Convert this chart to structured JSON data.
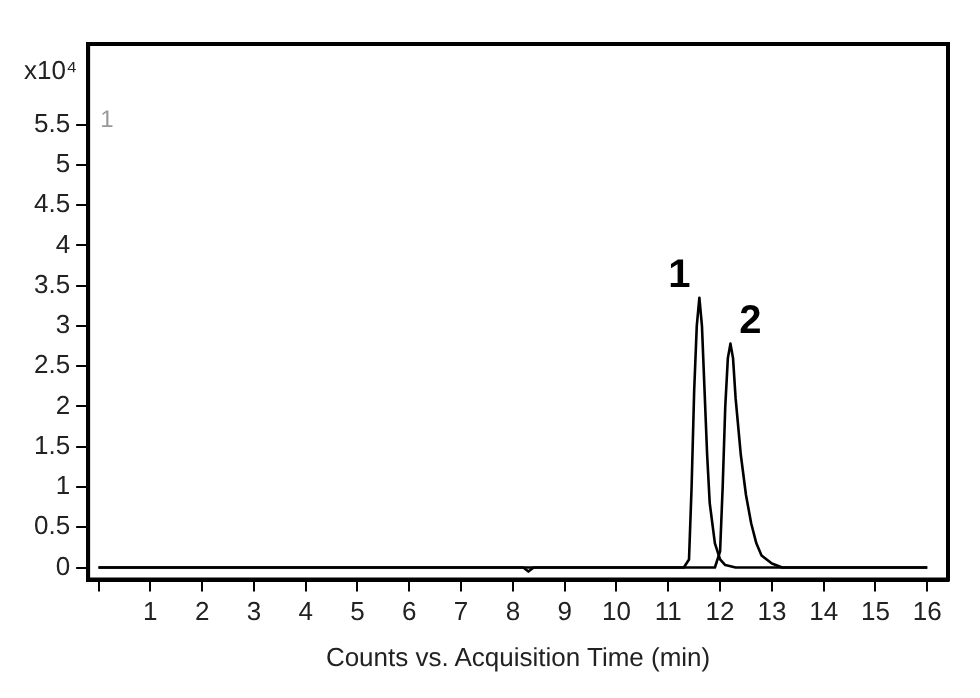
{
  "chart_data": {
    "type": "line",
    "xlabel": "Counts vs. Acquisition Time (min)",
    "ylabel": "x10⁴",
    "annotations": [
      {
        "text": "1",
        "x": 11.6,
        "y": 3.35
      },
      {
        "text": "2",
        "x": 12.2,
        "y": 2.78
      },
      "1"
    ],
    "series": [
      {
        "color": "#000000",
        "x": [
          0,
          8.2,
          8.3,
          8.4,
          11.3,
          11.4,
          11.45,
          11.5,
          11.55,
          11.6,
          11.65,
          11.7,
          11.75,
          11.8,
          11.9,
          12.0,
          12.1,
          12.3,
          16
        ],
        "values": [
          0,
          0,
          -0.05,
          0,
          0,
          0.1,
          1.0,
          2.2,
          3.0,
          3.35,
          3.0,
          2.2,
          1.4,
          0.8,
          0.3,
          0.1,
          0.03,
          0,
          0
        ]
      },
      {
        "color": "#000000",
        "x": [
          0,
          11.9,
          12.0,
          12.05,
          12.1,
          12.15,
          12.2,
          12.25,
          12.3,
          12.4,
          12.5,
          12.6,
          12.7,
          12.8,
          13.0,
          13.2,
          14,
          16
        ],
        "values": [
          0,
          0,
          0.2,
          1.0,
          2.0,
          2.6,
          2.78,
          2.6,
          2.1,
          1.4,
          0.9,
          0.55,
          0.3,
          0.15,
          0.05,
          0,
          0,
          0
        ]
      }
    ],
    "xlim": [
      -0.2,
      16.4
    ],
    "xticks": [
      {
        "value": 0,
        "label": null
      },
      1,
      2,
      3,
      4,
      5,
      6,
      7,
      8,
      9,
      10,
      11,
      12,
      13,
      14,
      15,
      16
    ],
    "ylim": [
      -0.15,
      6.5
    ],
    "yticks": [
      0,
      0.5,
      1,
      1.5,
      2,
      2.5,
      3,
      3.5,
      4,
      4.5,
      5,
      5.5
    ],
    "grid": false,
    "legend": false,
    "marker": "none",
    "line_style": "solid"
  }
}
